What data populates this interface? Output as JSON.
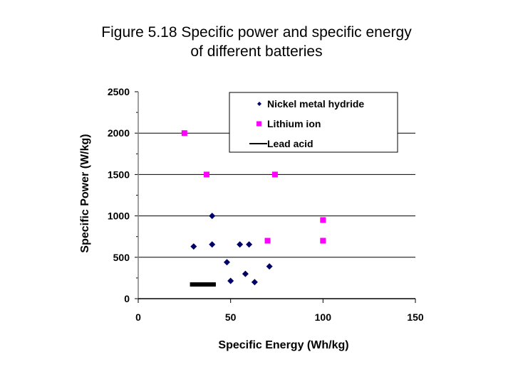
{
  "chart_data": {
    "type": "scatter",
    "title_line1": "Figure 5.18 Specific power and specific energy",
    "title_line2": "of different batteries",
    "xlabel": "Specific Energy (Wh/kg)",
    "ylabel": "Specific Power (W/kg)",
    "xlim": [
      0,
      150
    ],
    "ylim": [
      0,
      2500
    ],
    "xticks": [
      0,
      50,
      100,
      150
    ],
    "yticks": [
      0,
      500,
      1000,
      1500,
      2000,
      2500
    ],
    "grid": "horizontal major lines",
    "legend_placement": "top-right",
    "series": [
      {
        "name": "Nickel metal hydride",
        "marker": "diamond",
        "color": "#000066",
        "points": [
          [
            30,
            630
          ],
          [
            40,
            655
          ],
          [
            40,
            1000
          ],
          [
            48,
            440
          ],
          [
            50,
            215
          ],
          [
            55,
            655
          ],
          [
            60,
            655
          ],
          [
            58,
            300
          ],
          [
            63,
            200
          ],
          [
            71,
            390
          ]
        ]
      },
      {
        "name": "Lithium ion",
        "marker": "square",
        "color": "#ff00ff",
        "points": [
          [
            25,
            2000
          ],
          [
            37,
            1500
          ],
          [
            74,
            1500
          ],
          [
            70,
            700
          ],
          [
            100,
            950
          ],
          [
            100,
            700
          ]
        ]
      },
      {
        "name": "Lead acid",
        "marker": "line",
        "color": "#000000",
        "points": [
          [
            28,
            172
          ],
          [
            42,
            172
          ]
        ]
      }
    ]
  }
}
